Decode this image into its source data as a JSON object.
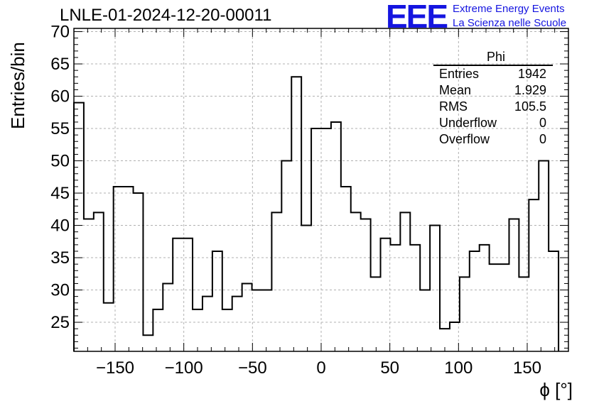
{
  "title": "LNLE-01-2024-12-20-00011",
  "logo": {
    "mark": "EEE",
    "line1": "Extreme Energy Events",
    "line2": "La Scienza nelle Scuole",
    "color": "#1515e0"
  },
  "stats": {
    "name": "Phi",
    "rows": [
      {
        "label": "Entries",
        "value": "1942"
      },
      {
        "label": "Mean",
        "value": "1.929"
      },
      {
        "label": "RMS",
        "value": "105.5"
      },
      {
        "label": "Underflow",
        "value": "0"
      },
      {
        "label": "Overflow",
        "value": "0"
      }
    ]
  },
  "chart_data": {
    "type": "bar",
    "histogram": true,
    "xlabel": "ϕ [°]",
    "ylabel": "Entries/bin",
    "xlim": [
      -180,
      180
    ],
    "ylim": [
      20.5,
      70.5
    ],
    "bin_width": 7.2,
    "x_bin_edges_start": -180,
    "values": [
      59,
      41,
      42,
      28,
      46,
      46,
      45,
      23,
      27,
      31,
      38,
      38,
      27,
      29,
      36,
      27,
      29,
      31,
      30,
      30,
      42,
      50,
      63,
      40,
      55,
      55,
      56,
      46,
      42,
      41,
      32,
      38,
      37,
      42,
      37,
      30,
      40,
      24,
      25,
      32,
      36,
      37,
      34,
      34,
      41,
      32,
      44,
      50,
      36
    ],
    "xticks": [
      -150,
      -100,
      -50,
      0,
      50,
      100,
      150
    ],
    "xtick_labels": [
      "−150",
      "−100",
      "−50",
      "0",
      "50",
      "100",
      "150"
    ],
    "yticks": [
      25,
      30,
      35,
      40,
      45,
      50,
      55,
      60,
      65,
      70
    ],
    "ytick_labels": [
      "25",
      "30",
      "35",
      "40",
      "45",
      "50",
      "55",
      "60",
      "65",
      "70"
    ],
    "grid": true,
    "line_color": "#000000"
  }
}
